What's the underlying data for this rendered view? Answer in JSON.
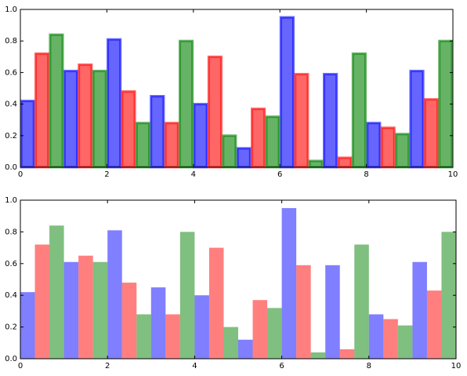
{
  "chart_data": [
    {
      "type": "bar",
      "edges": true,
      "alpha": 0.6,
      "x": [
        0,
        1,
        2,
        3,
        4,
        5,
        6,
        7,
        8,
        9
      ],
      "series": [
        {
          "color": "#0000ff",
          "values": [
            0.42,
            0.61,
            0.81,
            0.45,
            0.4,
            0.12,
            0.95,
            0.59,
            0.28,
            0.61
          ]
        },
        {
          "color": "#ff0000",
          "values": [
            0.72,
            0.65,
            0.48,
            0.28,
            0.7,
            0.37,
            0.59,
            0.06,
            0.25,
            0.43
          ]
        },
        {
          "color": "#008000",
          "values": [
            0.84,
            0.61,
            0.28,
            0.8,
            0.2,
            0.32,
            0.04,
            0.72,
            0.21,
            0.8
          ]
        }
      ],
      "xlim": [
        0,
        10
      ],
      "xticks": [
        0,
        2,
        4,
        6,
        8,
        10
      ],
      "ylim": [
        0,
        1
      ],
      "yticks": [
        {
          "value": 0,
          "label": "0.0"
        },
        {
          "value": 0.2,
          "label": "0.2"
        },
        {
          "value": 0.4,
          "label": "0.4"
        },
        {
          "value": 0.6,
          "label": "0.6"
        },
        {
          "value": 0.8,
          "label": "0.8"
        },
        {
          "value": 1,
          "label": "1.0"
        }
      ]
    },
    {
      "type": "bar",
      "edges": false,
      "alpha": 0.5,
      "x": [
        0,
        1,
        2,
        3,
        4,
        5,
        6,
        7,
        8,
        9
      ],
      "series": [
        {
          "color": "#0000ff",
          "values": [
            0.42,
            0.61,
            0.81,
            0.45,
            0.4,
            0.12,
            0.95,
            0.59,
            0.28,
            0.61
          ]
        },
        {
          "color": "#ff0000",
          "values": [
            0.72,
            0.65,
            0.48,
            0.28,
            0.7,
            0.37,
            0.59,
            0.06,
            0.25,
            0.43
          ]
        },
        {
          "color": "#008000",
          "values": [
            0.84,
            0.61,
            0.28,
            0.8,
            0.2,
            0.32,
            0.04,
            0.72,
            0.21,
            0.8
          ]
        }
      ],
      "xlim": [
        0,
        10
      ],
      "xticks": [
        0,
        2,
        4,
        6,
        8,
        10
      ],
      "ylim": [
        0,
        1
      ],
      "yticks": [
        {
          "value": 0,
          "label": "0.0"
        },
        {
          "value": 0.2,
          "label": "0.2"
        },
        {
          "value": 0.4,
          "label": "0.4"
        },
        {
          "value": 0.6,
          "label": "0.6"
        },
        {
          "value": 0.8,
          "label": "0.8"
        },
        {
          "value": 1,
          "label": "1.0"
        }
      ]
    }
  ]
}
